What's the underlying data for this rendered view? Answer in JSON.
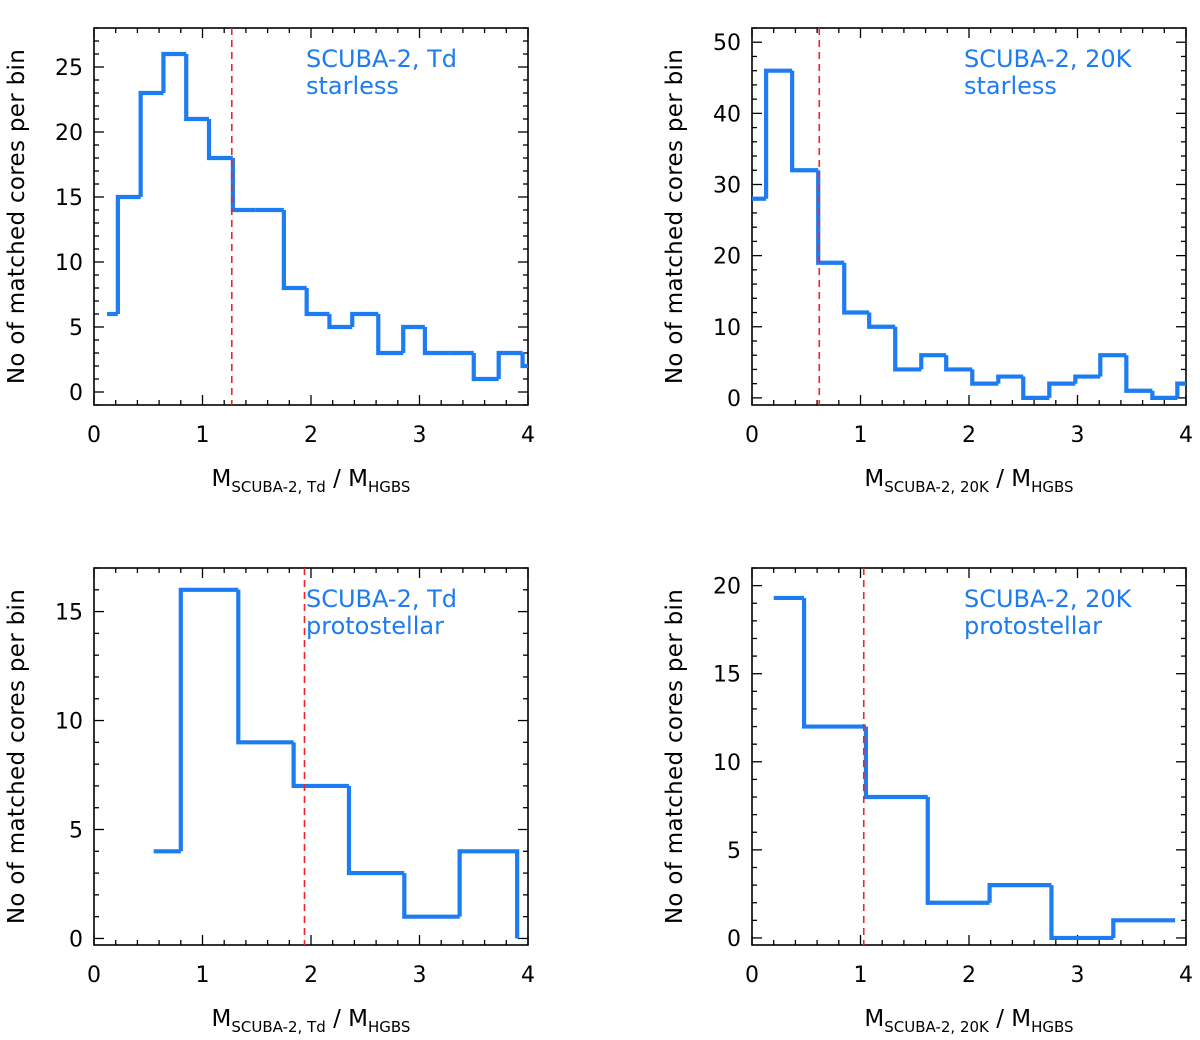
{
  "colors": {
    "hist": "#1e7cf2",
    "median": "#e8262b",
    "axis": "#000000"
  },
  "chart_data": [
    {
      "type": "histogram",
      "panel": "top-left",
      "annotation": [
        "SCUBA-2, Td",
        "starless"
      ],
      "ylabel": "No of matched cores per bin",
      "xlabel": {
        "main1": "M",
        "sub1": "SCUBA-2, Td",
        "sep": " / ",
        "main2": "M",
        "sub2": "HGBS"
      },
      "xlim": [
        0,
        4
      ],
      "ylim": [
        -1,
        28
      ],
      "xticks": [
        0,
        1,
        2,
        3,
        4
      ],
      "yticks": [
        0,
        5,
        10,
        15,
        20,
        25
      ],
      "edges": [
        0.12,
        0.22,
        0.43,
        0.64,
        0.85,
        1.06,
        1.28,
        1.49,
        1.75,
        1.96,
        2.17,
        2.38,
        2.62,
        2.85,
        3.05,
        3.28,
        3.5,
        3.73,
        3.95,
        4.0
      ],
      "counts": [
        6,
        15,
        23,
        26,
        21,
        18,
        14,
        14,
        8,
        6,
        5,
        6,
        3,
        5,
        3,
        3,
        1,
        3,
        2
      ],
      "median": 1.27
    },
    {
      "type": "histogram",
      "panel": "top-right",
      "annotation": [
        "SCUBA-2, 20K",
        "starless"
      ],
      "ylabel": "No of matched cores per bin",
      "xlabel": {
        "main1": "M",
        "sub1": "SCUBA-2, 20K",
        "sep": " / ",
        "main2": "M",
        "sub2": "HGBS"
      },
      "xlim": [
        0,
        4
      ],
      "ylim": [
        -1,
        52
      ],
      "xticks": [
        0,
        1,
        2,
        3,
        4
      ],
      "yticks": [
        0,
        10,
        20,
        30,
        40,
        50
      ],
      "edges": [
        0.0,
        0.13,
        0.37,
        0.61,
        0.85,
        1.08,
        1.32,
        1.56,
        1.79,
        2.03,
        2.27,
        2.5,
        2.74,
        2.98,
        3.21,
        3.45,
        3.69,
        3.92,
        4.0
      ],
      "counts": [
        28,
        46,
        32,
        19,
        12,
        10,
        4,
        6,
        4,
        2,
        3,
        0,
        2,
        3,
        6,
        1,
        0,
        2
      ],
      "median": 0.62
    },
    {
      "type": "histogram",
      "panel": "bottom-left",
      "annotation": [
        "SCUBA-2, Td",
        "protostellar"
      ],
      "ylabel": "No of matched cores per bin",
      "xlabel": {
        "main1": "M",
        "sub1": "SCUBA-2, Td",
        "sep": " / ",
        "main2": "M",
        "sub2": "HGBS"
      },
      "xlim": [
        0,
        4
      ],
      "ylim": [
        -0.3,
        17
      ],
      "xticks": [
        0,
        1,
        2,
        3,
        4
      ],
      "yticks": [
        0,
        5,
        10,
        15
      ],
      "edges": [
        0.55,
        0.8,
        1.33,
        1.84,
        2.35,
        2.86,
        3.37,
        3.9
      ],
      "counts": [
        4,
        16,
        9,
        7,
        3,
        1,
        4
      ],
      "median": 1.94
    },
    {
      "type": "histogram",
      "panel": "bottom-right",
      "annotation": [
        "SCUBA-2, 20K",
        "protostellar"
      ],
      "ylabel": "No of matched cores per bin",
      "xlabel": {
        "main1": "M",
        "sub1": "SCUBA-2, 20K",
        "sep": " / ",
        "main2": "M",
        "sub2": "HGBS"
      },
      "xlim": [
        0,
        4
      ],
      "ylim": [
        -0.4,
        21
      ],
      "xticks": [
        0,
        1,
        2,
        3,
        4
      ],
      "yticks": [
        0,
        5,
        10,
        15,
        20
      ],
      "edges": [
        0.2,
        0.48,
        1.05,
        1.62,
        2.19,
        2.76,
        3.33,
        3.9
      ],
      "counts": [
        19.3,
        12,
        8,
        2,
        3,
        0,
        1
      ],
      "median": 1.03
    }
  ]
}
